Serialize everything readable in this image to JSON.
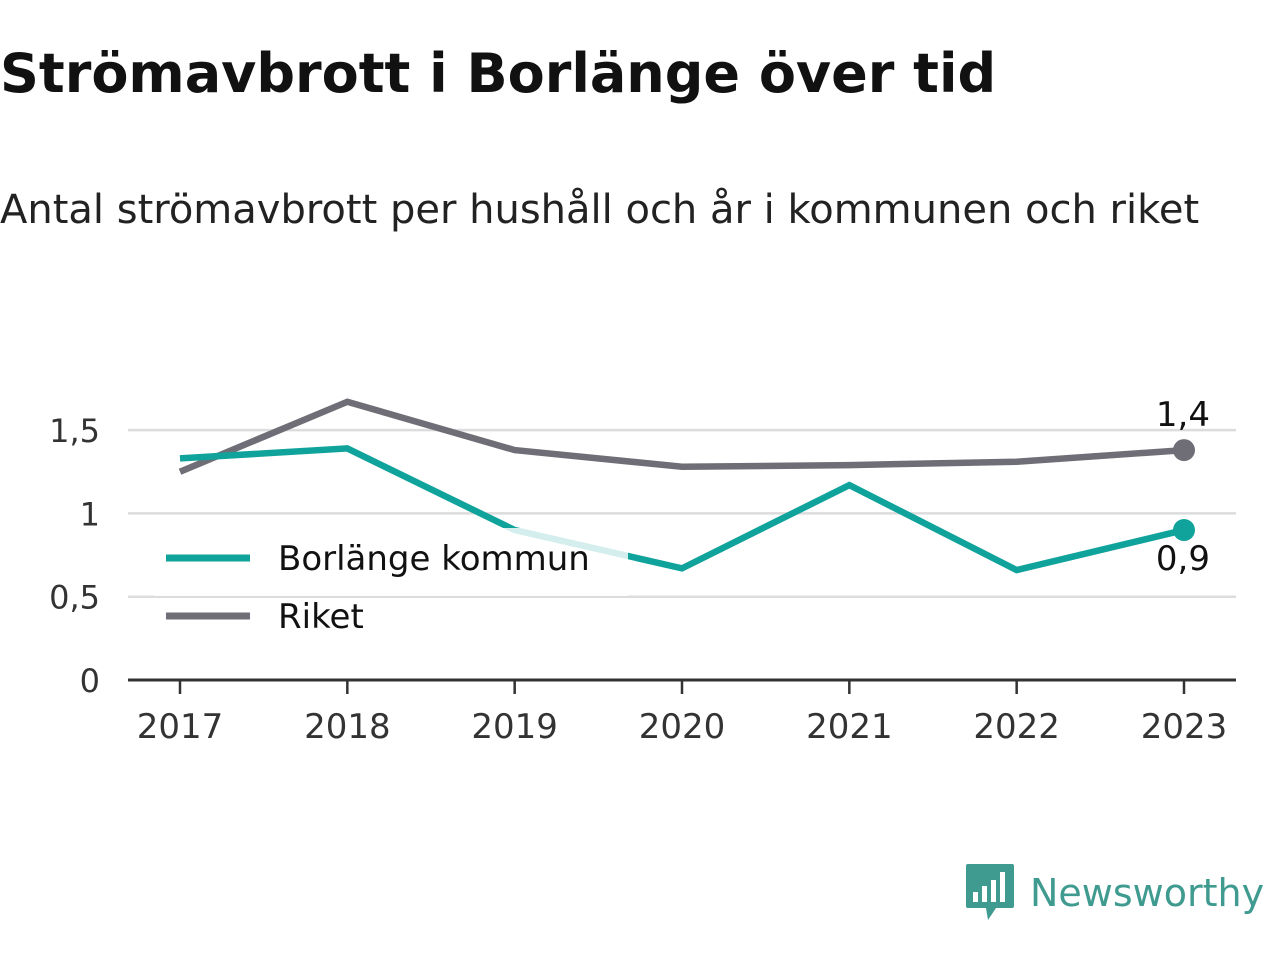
{
  "title": "Strömavbrott i Borlänge över tid",
  "subtitle": "Antal strömavbrott per hushåll och år i kommunen och riket",
  "brand": {
    "name": "Newsworthy"
  },
  "chart_data": {
    "type": "line",
    "x": [
      "2017",
      "2018",
      "2019",
      "2020",
      "2021",
      "2022",
      "2023"
    ],
    "yticks": [
      0,
      0.5,
      1,
      1.5
    ],
    "ytick_labels": [
      "0",
      "0,5",
      "1",
      "1,5"
    ],
    "ylim": [
      0,
      1.75
    ],
    "grid": true,
    "legend_position": "left",
    "series": [
      {
        "name": "Borlänge kommun",
        "color": "#0fa39b",
        "values": [
          1.33,
          1.39,
          0.9,
          0.67,
          1.17,
          0.66,
          0.9
        ],
        "end_label": "0,9"
      },
      {
        "name": "Riket",
        "color": "#6f6e76",
        "values": [
          1.25,
          1.67,
          1.38,
          1.28,
          1.29,
          1.31,
          1.38
        ],
        "end_label": "1,4"
      }
    ],
    "colors": {
      "axis": "#333333",
      "grid": "#dcdcdc",
      "brand": "#3f9a8f"
    }
  }
}
